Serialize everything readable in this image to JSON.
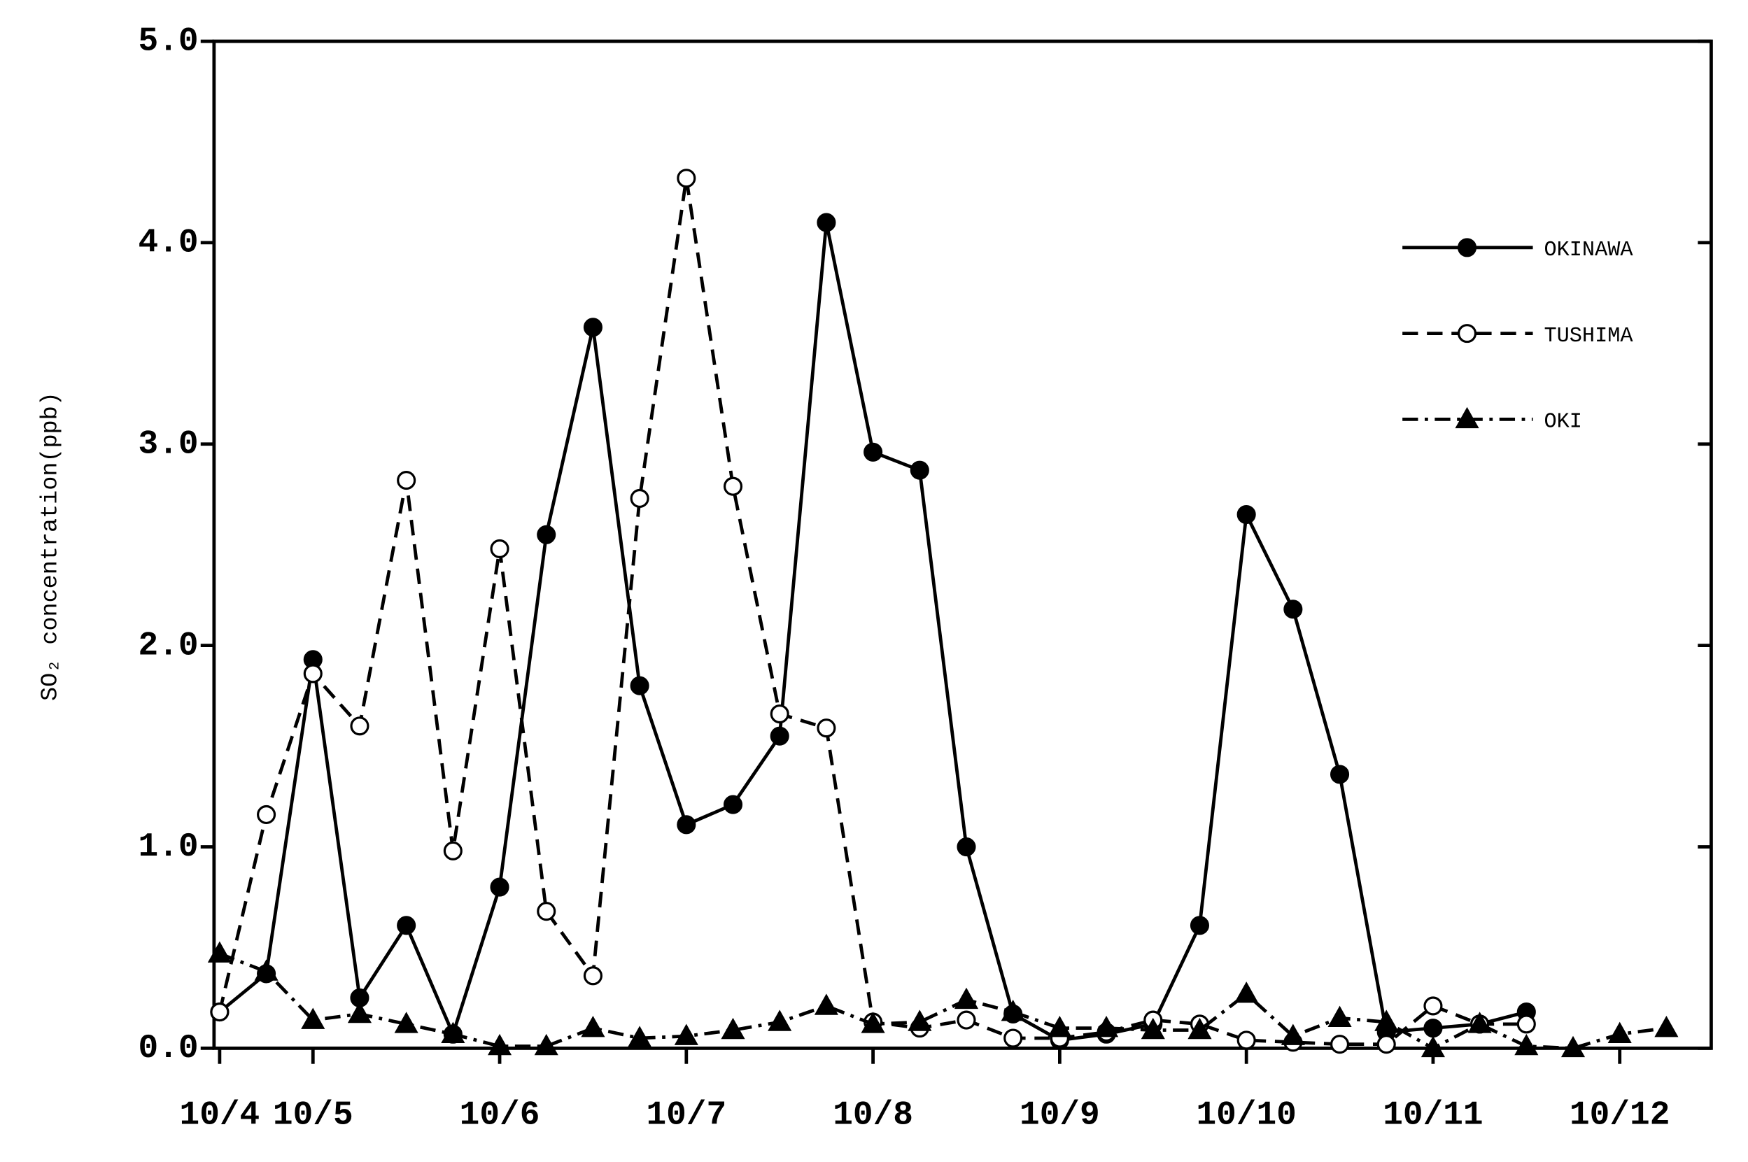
{
  "chart_data": {
    "type": "line",
    "y_label": "SO₂ concentration(ppb)",
    "xlim": [
      0.47,
      8.49
    ],
    "ylim": [
      0,
      5
    ],
    "xticks": [
      {
        "value": 0.5,
        "label": "10/4"
      },
      {
        "value": 1,
        "label": "10/5"
      },
      {
        "value": 2,
        "label": "10/6"
      },
      {
        "value": 3,
        "label": "10/7"
      },
      {
        "value": 4,
        "label": "10/8"
      },
      {
        "value": 5,
        "label": "10/9"
      },
      {
        "value": 6,
        "label": "10/10"
      },
      {
        "value": 7,
        "label": "10/11"
      },
      {
        "value": 8,
        "label": "10/12"
      }
    ],
    "yticks": [
      {
        "value": 0,
        "label": "0.0"
      },
      {
        "value": 1,
        "label": "1.0"
      },
      {
        "value": 2,
        "label": "2.0"
      },
      {
        "value": 3,
        "label": "3.0"
      },
      {
        "value": 4,
        "label": "4.0"
      },
      {
        "value": 5,
        "label": "5.0"
      }
    ],
    "legend": "upper right",
    "series": [
      {
        "name": "OKINAWA",
        "color": "#000000",
        "dash": "solid",
        "marker": "filled-circle",
        "x": [
          0.5,
          0.75,
          1,
          1.25,
          1.5,
          1.75,
          2,
          2.25,
          2.5,
          2.75,
          3,
          3.25,
          3.5,
          3.75,
          4,
          4.25,
          4.5,
          4.75,
          5,
          5.25,
          5.5,
          5.75,
          6,
          6.25,
          6.5,
          6.75,
          7,
          7.25,
          7.5
        ],
        "values": [
          0.18,
          0.37,
          1.93,
          0.25,
          0.61,
          0.07,
          0.8,
          2.55,
          3.58,
          1.8,
          1.11,
          1.21,
          1.55,
          4.1,
          2.96,
          2.87,
          1.0,
          0.17,
          0.04,
          0.07,
          0.12,
          0.61,
          2.65,
          2.18,
          1.36,
          0.08,
          0.1,
          0.12,
          0.18
        ]
      },
      {
        "name": "TUSHIMA",
        "color": "#000000",
        "dash": "dashed",
        "marker": "open-circle",
        "x": [
          0.5,
          0.75,
          1,
          1.25,
          1.5,
          1.75,
          2,
          2.25,
          2.5,
          2.75,
          3,
          3.25,
          3.5,
          3.75,
          4,
          4.25,
          4.5,
          4.75,
          5,
          5.25,
          5.5,
          5.75,
          6,
          6.25,
          6.5,
          6.75,
          7,
          7.25,
          7.5
        ],
        "values": [
          0.18,
          1.16,
          1.86,
          1.6,
          2.82,
          0.98,
          2.48,
          0.68,
          0.36,
          2.73,
          4.32,
          2.79,
          1.66,
          1.59,
          0.13,
          0.1,
          0.14,
          0.05,
          0.05,
          0.08,
          0.14,
          0.12,
          0.04,
          0.03,
          0.02,
          0.02,
          0.21,
          0.12,
          0.12
        ]
      },
      {
        "name": "OKI",
        "color": "#000000",
        "dash": "dashdot",
        "marker": "filled-triangle",
        "x": [
          0.5,
          0.75,
          1,
          1.25,
          1.5,
          1.75,
          2,
          2.25,
          2.5,
          2.75,
          3,
          3.25,
          3.5,
          3.75,
          4,
          4.25,
          4.5,
          4.75,
          5,
          5.25,
          5.5,
          5.75,
          6,
          6.25,
          6.5,
          6.75,
          7,
          7.25,
          7.5,
          7.75,
          8,
          8.25
        ],
        "values": [
          0.47,
          0.38,
          0.14,
          0.17,
          0.12,
          0.07,
          0.01,
          0.01,
          0.1,
          0.05,
          0.06,
          0.09,
          0.13,
          0.21,
          0.12,
          0.13,
          0.24,
          0.18,
          0.1,
          0.1,
          0.09,
          0.09,
          0.27,
          0.06,
          0.15,
          0.13,
          0.0,
          0.12,
          0.01,
          0.0,
          0.07,
          0.1
        ]
      }
    ]
  }
}
